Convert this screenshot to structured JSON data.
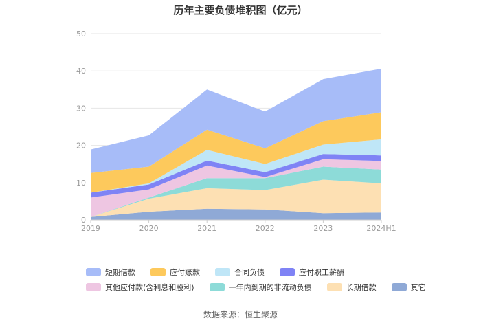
{
  "chart_data": {
    "type": "area",
    "stacked": true,
    "title": "历年主要负债堆积图（亿元）",
    "categories": [
      "2019",
      "2020",
      "2021",
      "2022",
      "2023",
      "2024H1"
    ],
    "ylim": [
      0,
      50
    ],
    "yticks": [
      0,
      10,
      20,
      30,
      40,
      50
    ],
    "grid": true,
    "legend_position": "bottom",
    "series": [
      {
        "name": "其它",
        "color": "#8fa9d6",
        "values": [
          0.8,
          2.2,
          3.0,
          2.8,
          1.8,
          2.0
        ]
      },
      {
        "name": "长期借款",
        "color": "#fde0b3",
        "values": [
          0.0,
          3.5,
          5.5,
          5.2,
          9.0,
          7.8
        ]
      },
      {
        "name": "一年内到期的非流动负债",
        "color": "#8ddbd8",
        "values": [
          0.0,
          0.3,
          2.7,
          3.2,
          3.5,
          3.7
        ]
      },
      {
        "name": "其他应付款(含利息和股利)",
        "color": "#eec6e2",
        "values": [
          5.2,
          2.2,
          3.4,
          0.3,
          2.0,
          2.3
        ]
      },
      {
        "name": "应付职工薪酬",
        "color": "#7f83f5",
        "values": [
          1.3,
          1.3,
          1.3,
          1.3,
          1.4,
          1.5
        ]
      },
      {
        "name": "合同负债",
        "color": "#bfe6f7",
        "values": [
          0.0,
          0.3,
          2.9,
          2.2,
          2.5,
          4.3
        ]
      },
      {
        "name": "应付账款",
        "color": "#fdc95c",
        "values": [
          5.3,
          4.5,
          5.4,
          4.2,
          6.3,
          7.3
        ]
      },
      {
        "name": "短期借款",
        "color": "#a7bcf8",
        "values": [
          6.3,
          8.4,
          10.8,
          9.9,
          11.3,
          11.7
        ]
      }
    ]
  },
  "footer": {
    "source": "数据来源：恒生聚源"
  }
}
